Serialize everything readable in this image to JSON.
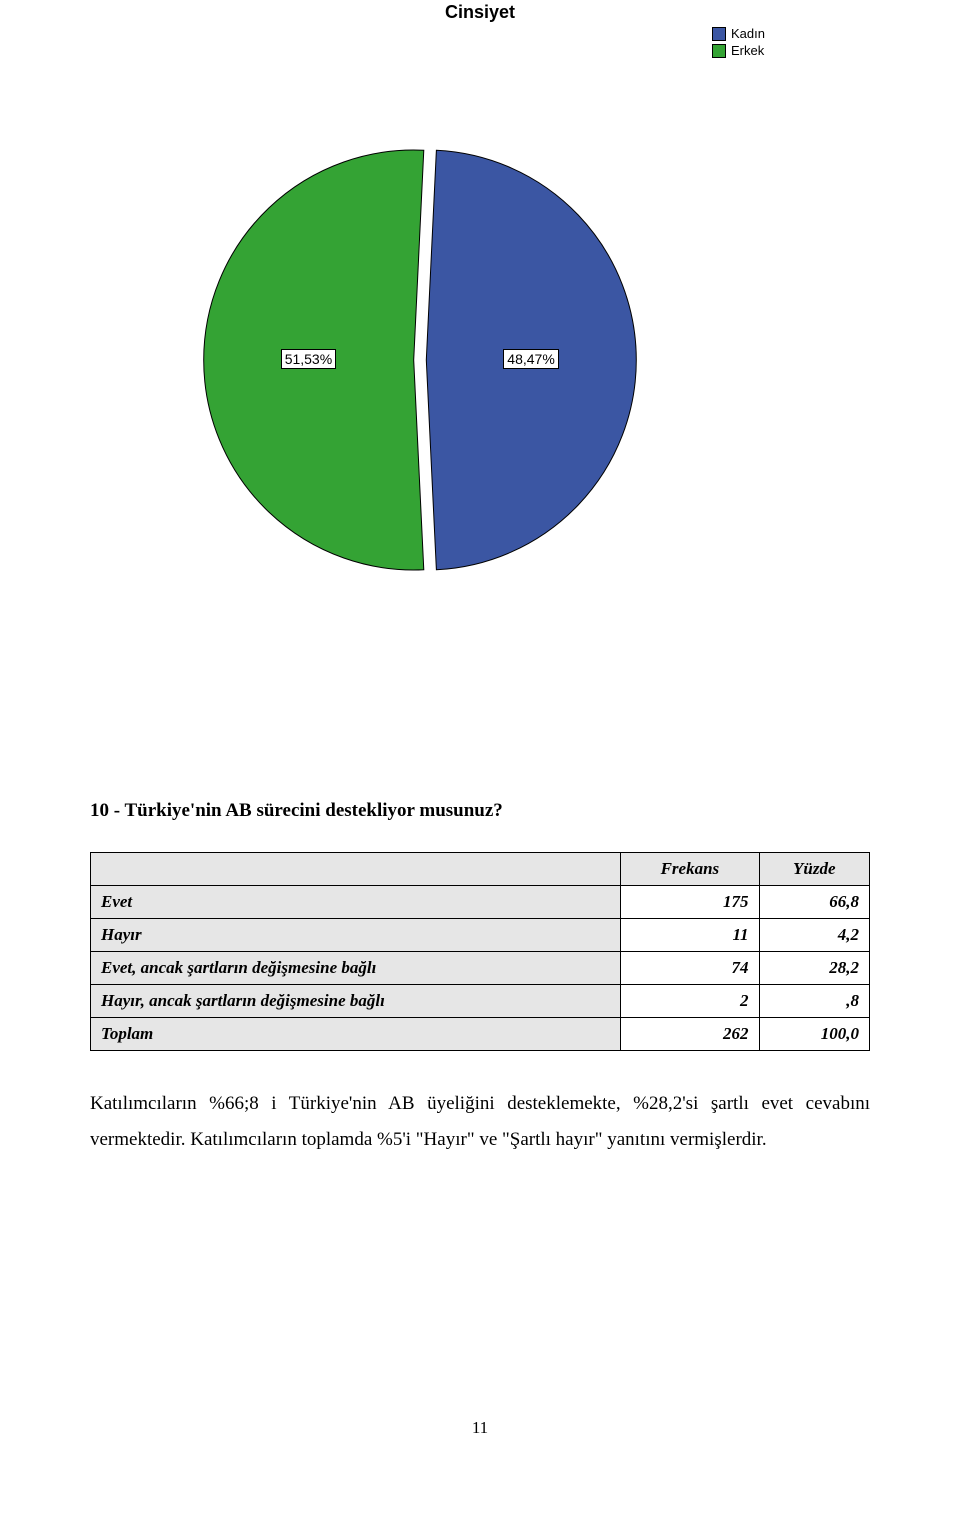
{
  "chart": {
    "title": "Cinsiyet",
    "type": "pie",
    "background_color": "#ffffff",
    "slice_border_color": "#000000",
    "slices": [
      {
        "label": "Kadın",
        "pct": 48.47,
        "pct_text": "48,47%",
        "color": "#3b56a3",
        "explode": 0.03
      },
      {
        "label": "Erkek",
        "pct": 51.53,
        "pct_text": "51,53%",
        "color": "#34a334",
        "explode": 0.03
      }
    ],
    "legend": {
      "items": [
        {
          "label": "Kadın",
          "color": "#3b56a3"
        },
        {
          "label": "Erkek",
          "color": "#34a334"
        }
      ],
      "fontsize": 13
    },
    "label_box": {
      "background": "#ffffff",
      "border": "#000000",
      "fontsize": 14
    },
    "title_fontsize": 18
  },
  "question": "10 - Türkiye'nin AB sürecini destekliyor musunuz?",
  "table": {
    "columns": [
      "",
      "Frekans",
      "Yüzde"
    ],
    "rows": [
      [
        "Evet",
        "175",
        "66,8"
      ],
      [
        "Hayır",
        "11",
        "4,2"
      ],
      [
        "Evet, ancak şartların değişmesine bağlı",
        "74",
        "28,2"
      ],
      [
        "Hayır, ancak şartların değişmesine bağlı",
        "2",
        ",8"
      ],
      [
        "Toplam",
        "262",
        "100,0"
      ]
    ],
    "header_bg": "#e6e6e6",
    "label_bg": "#e6e6e6",
    "border_color": "#000000",
    "fontsize": 17
  },
  "paragraph": "Katılımcıların %66;8 i Türkiye'nin AB üyeliğini desteklemekte, %28,2'si şartlı evet cevabını vermektedir. Katılımcıların toplamda %5'i \"Hayır\" ve \"Şartlı hayır\" yanıtını vermişlerdir.",
  "page_number": "11"
}
